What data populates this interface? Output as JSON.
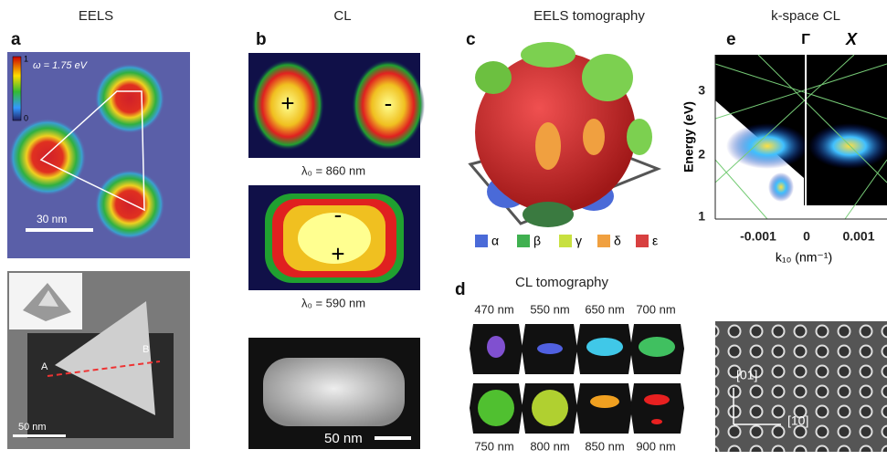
{
  "columns": [
    "EELS",
    "CL",
    "EELS tomography",
    "k-space CL"
  ],
  "panels": {
    "a": {
      "label": "a",
      "omega": "ω = 1.75 eV",
      "colorbar": [
        "1",
        "0"
      ],
      "scale": "30 nm",
      "inset_labels": [
        "A",
        "B"
      ],
      "scale2": "50 nm"
    },
    "b": {
      "label": "b",
      "modes": [
        {
          "signs": [
            "+",
            "-"
          ],
          "caption": "λ₀ = 860 nm"
        },
        {
          "signs": [
            "-",
            "+"
          ],
          "caption": "λ₀ = 590 nm"
        }
      ],
      "scale": "50 nm"
    },
    "c": {
      "label": "c",
      "legend": [
        "α",
        "β",
        "γ",
        "δ",
        "ε"
      ]
    },
    "d": {
      "label": "d",
      "title": "CL tomography",
      "top": [
        "470 nm",
        "550 nm",
        "650 nm",
        "700 nm"
      ],
      "bottom": [
        "750 nm",
        "800 nm",
        "850 nm",
        "900 nm"
      ]
    },
    "e": {
      "label": "e",
      "points": [
        "Γ",
        "X"
      ],
      "ylabel": "Energy (eV)",
      "yticks": [
        "3",
        "2",
        "1"
      ],
      "xticks": [
        "-0.001",
        "0",
        "0.001"
      ],
      "xlabel": "k₁₀ (nm⁻¹)",
      "directions": [
        "[01]",
        "[10]"
      ]
    }
  }
}
